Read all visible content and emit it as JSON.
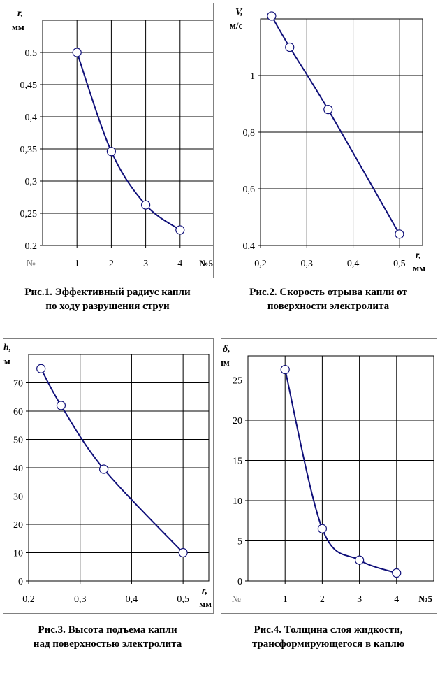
{
  "chart_data": [
    {
      "type": "line",
      "x_var": "№",
      "y_var": "r, мм",
      "ylabel_symbol": "r,",
      "ylabel_unit": "мм",
      "xlabel_left": "№",
      "xlabel_right": "№5",
      "x_ticks": [
        "1",
        "2",
        "3",
        "4"
      ],
      "y_ticks": [
        "0,2",
        "0,25",
        "0,3",
        "0,35",
        "0,4",
        "0,45",
        "0,5"
      ],
      "xlim": [
        0,
        5
      ],
      "ylim": [
        0.2,
        0.55
      ],
      "grid": true,
      "x": [
        1,
        2,
        3,
        4
      ],
      "y": [
        0.5,
        0.346,
        0.263,
        0.224
      ],
      "caption_line1": "Рис.1. Эффективный радиус капли",
      "caption_line2": "по ходу разрушения струи"
    },
    {
      "type": "line",
      "x_var": "r, мм",
      "y_var": "V, м/с",
      "ylabel_symbol": "V,",
      "ylabel_unit": "м/с",
      "xlabel_symbol": "r,",
      "xlabel_unit": "мм",
      "x_ticks": [
        "0,2",
        "0,3",
        "0,4",
        "0,5"
      ],
      "y_ticks": [
        "0,4",
        "0,6",
        "0,8",
        "1"
      ],
      "xlim": [
        0.2,
        0.55
      ],
      "ylim": [
        0.4,
        1.2
      ],
      "grid": true,
      "x": [
        0.224,
        0.263,
        0.346,
        0.5
      ],
      "y": [
        1.21,
        1.1,
        0.88,
        0.44
      ],
      "caption_line1": "Рис.2. Скорость отрыва капли от",
      "caption_line2": "поверхности электролита"
    },
    {
      "type": "line",
      "x_var": "r, мм",
      "y_var": "h, мм",
      "ylabel_symbol": "h,",
      "ylabel_unit": "мм",
      "xlabel_symbol": "r,",
      "xlabel_unit": "мм",
      "x_ticks": [
        "0,2",
        "0,3",
        "0,4",
        "0,5"
      ],
      "y_ticks": [
        "0",
        "10",
        "20",
        "30",
        "40",
        "50",
        "60",
        "70"
      ],
      "xlim": [
        0.2,
        0.55
      ],
      "ylim": [
        0,
        80
      ],
      "grid": true,
      "x": [
        0.224,
        0.263,
        0.346,
        0.5
      ],
      "y": [
        75,
        62,
        39.5,
        10
      ],
      "caption_line1": "Рис.3. Высота подъема капли",
      "caption_line2": "над поверхностью электролита"
    },
    {
      "type": "line",
      "x_var": "№",
      "y_var": "δ, мм",
      "ylabel_symbol": "δ,",
      "ylabel_unit": "мм",
      "xlabel_left": "№",
      "xlabel_right": "№5",
      "x_ticks": [
        "1",
        "2",
        "3",
        "4"
      ],
      "y_ticks": [
        "0",
        "5",
        "10",
        "15",
        "20",
        "25"
      ],
      "xlim": [
        0,
        5
      ],
      "ylim": [
        0,
        28
      ],
      "grid": true,
      "x": [
        1,
        2,
        3,
        4
      ],
      "y": [
        26.3,
        6.5,
        2.6,
        1.0
      ],
      "caption_line1": "Рис.4. Толщина слоя жидкости,",
      "caption_line2": "трансформирующегося в каплю"
    }
  ],
  "colors": {
    "line": "#10107a",
    "grid": "#000000",
    "marker_fill": "#ffffff",
    "marker_stroke": "#10107a"
  }
}
